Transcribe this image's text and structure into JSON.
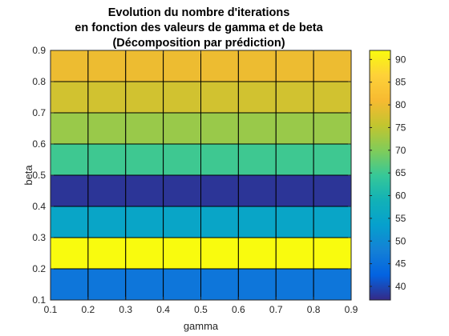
{
  "chart_data": {
    "type": "heatmap",
    "title": [
      "Evolution du nombre d'iterations",
      "en fonction des valeurs de gamma et de beta",
      "(Décomposition par prédiction)"
    ],
    "xlabel": "gamma",
    "ylabel": "beta",
    "x": [
      0.1,
      0.2,
      0.3,
      0.4,
      0.5,
      0.6,
      0.7,
      0.8,
      0.9
    ],
    "y": [
      0.1,
      0.2,
      0.3,
      0.4,
      0.5,
      0.6,
      0.7,
      0.8,
      0.9
    ],
    "xlim": [
      0.1,
      0.9
    ],
    "ylim": [
      0.1,
      0.9
    ],
    "x_ticks": [
      "0.1",
      "0.2",
      "0.3",
      "0.4",
      "0.5",
      "0.6",
      "0.7",
      "0.8",
      "0.9"
    ],
    "y_ticks": [
      "0.1",
      "0.2",
      "0.3",
      "0.4",
      "0.5",
      "0.6",
      "0.7",
      "0.8",
      "0.9"
    ],
    "row_values_by_beta": [
      {
        "beta_range": [
          0.1,
          0.2
        ],
        "value": 46
      },
      {
        "beta_range": [
          0.2,
          0.3
        ],
        "value": 92
      },
      {
        "beta_range": [
          0.3,
          0.4
        ],
        "value": 55
      },
      {
        "beta_range": [
          0.4,
          0.5
        ],
        "value": 38
      },
      {
        "beta_range": [
          0.5,
          0.6
        ],
        "value": 65
      },
      {
        "beta_range": [
          0.6,
          0.7
        ],
        "value": 72
      },
      {
        "beta_range": [
          0.7,
          0.8
        ],
        "value": 77
      },
      {
        "beta_range": [
          0.8,
          0.9
        ],
        "value": 80
      }
    ],
    "colorbar": {
      "colormap": "parula",
      "range": [
        37,
        92
      ],
      "ticks": [
        40,
        45,
        50,
        55,
        60,
        65,
        70,
        75,
        80,
        85,
        90
      ]
    },
    "grid": false
  }
}
